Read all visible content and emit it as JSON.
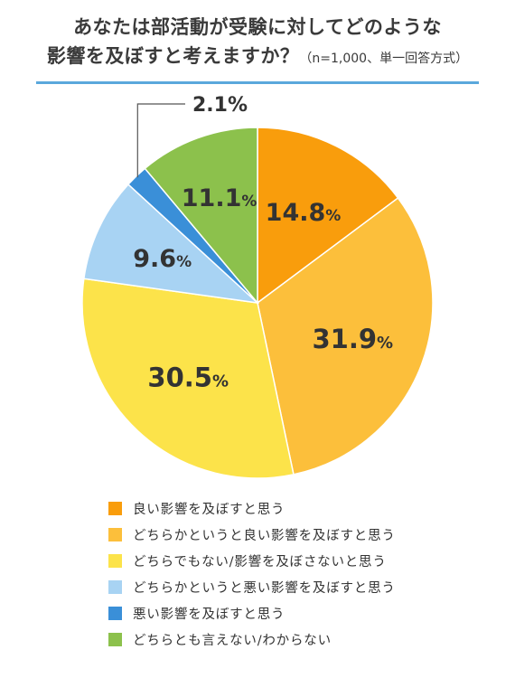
{
  "title": {
    "line1": "あなたは部活動が受験に対してどのような",
    "line2": "影響を及ぼすと考えますか？",
    "note": "（n=1,000、単一回答方式）"
  },
  "chart_data": {
    "type": "pie",
    "start": "12 o'clock, clockwise",
    "slices": [
      {
        "label": "良い影響を及ぼすと思う",
        "value": 14.8,
        "display": "14.8",
        "color": "#f99d0c"
      },
      {
        "label": "どちらかというと良い影響を及ぼすと思う",
        "value": 31.9,
        "display": "31.9",
        "color": "#fcbf3b"
      },
      {
        "label": "どちらでもない/影響を及ぼさないと思う",
        "value": 30.5,
        "display": "30.5",
        "color": "#fce34a"
      },
      {
        "label": "どちらかというと悪い影響を及ぼすと思う",
        "value": 9.6,
        "display": "9.6",
        "color": "#a8d3f3"
      },
      {
        "label": "悪い影響を及ぼすと思う",
        "value": 2.1,
        "display": "2.1",
        "color": "#3a8fd8"
      },
      {
        "label": "どちらとも言えない/わからない",
        "value": 11.1,
        "display": "11.1",
        "color": "#8cc14c"
      }
    ],
    "percent_sign": "%",
    "legend_position": "bottom"
  }
}
